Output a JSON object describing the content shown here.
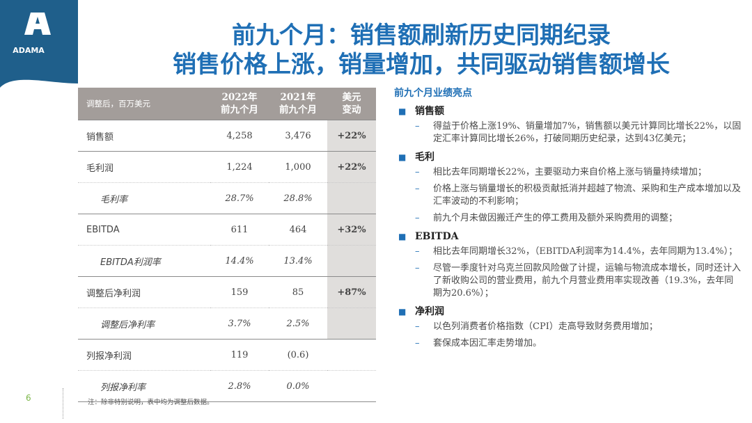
{
  "logo": {
    "text": "ADAMA",
    "color": "#1f5f8b"
  },
  "title": {
    "line1": "前九个月：销售额刷新历史同期纪录",
    "line2": "销售价格上涨，销量增加，共同驱动销售额增长"
  },
  "table": {
    "unit_header": "调整后，百万美元",
    "col_2022": [
      "2022年",
      "前九个月"
    ],
    "col_2021": [
      "2021年",
      "前九个月"
    ],
    "col_change": [
      "美元",
      "变动"
    ],
    "rows": [
      {
        "label": "销售额",
        "v2022": "4,258",
        "v2021": "3,476",
        "change": "+22%"
      },
      {
        "label": "毛利润",
        "v2022": "1,224",
        "v2021": "1,000",
        "change": "+22%"
      },
      {
        "label": "毛利率",
        "v2022": "28.7%",
        "v2021": "28.8%",
        "change": ""
      },
      {
        "label": "EBITDA",
        "v2022": "611",
        "v2021": "464",
        "change": "+32%"
      },
      {
        "label": "EBITDA利润率",
        "v2022": "14.4%",
        "v2021": "13.4%",
        "change": ""
      },
      {
        "label": "调整后净利润",
        "v2022": "159",
        "v2021": "85",
        "change": "+87%"
      },
      {
        "label": "调整后净利率",
        "v2022": "3.7%",
        "v2021": "2.5%",
        "change": ""
      },
      {
        "label": "列报净利润",
        "v2022": "119",
        "v2021": "(0.6)",
        "change": ""
      },
      {
        "label": "列报净利率",
        "v2022": "2.8%",
        "v2021": "0.0%",
        "change": ""
      }
    ]
  },
  "highlights": {
    "heading": "前九个月业绩亮点",
    "sections": [
      {
        "title": "销售额",
        "items": [
          "得益于价格上涨19%、销量增加7%，销售额以美元计算同比增长22%，以固定汇率计算同比增长26%，打破同期历史纪录，达到43亿美元；"
        ]
      },
      {
        "title": "毛利",
        "items": [
          "相比去年同期增长22%，主要驱动力来自价格上涨与销量持续增加；",
          "价格上涨与销量增长的积极贡献抵消并超越了物流、采购和生产成本增加以及汇率波动的不利影响；",
          "前九个月未做因搬迁产生的停工费用及额外采购费用的调整；"
        ]
      },
      {
        "title": "EBITDA",
        "items": [
          "相比去年同期增长32%，（EBITDA利润率为14.4%，去年同期为13.4%）；",
          "尽管一季度针对乌克兰回款风险做了计提，运输与物流成本增长，同时还计入了新收购公司的营业费用，前九个月营业费用率实现改善（19.3%，去年同期为20.6%）；"
        ]
      },
      {
        "title": "净利润",
        "items": [
          "以色列消费者价格指数（CPI）走高导致财务费用增加；",
          "套保成本因汇率走势增加。"
        ]
      }
    ]
  },
  "footer": {
    "page_number": "6",
    "note": "注：除非特别说明，表中均为调整后数据。"
  }
}
